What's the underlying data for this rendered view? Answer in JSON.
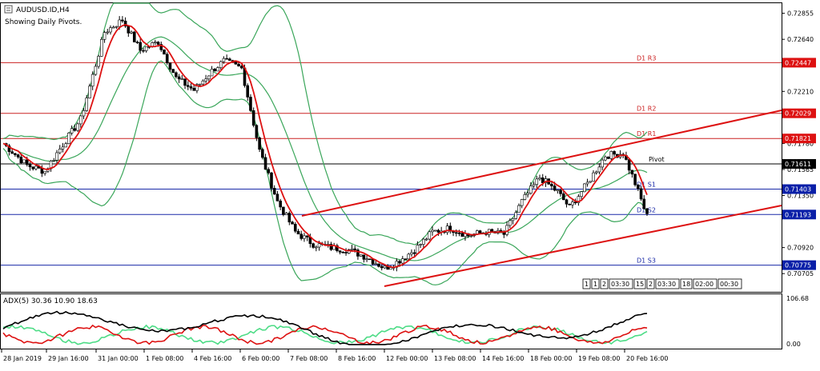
{
  "header": {
    "symbol_title": "AUDUSD.ID,H4",
    "subtitle": "Showing Daily Pivots."
  },
  "price_axis": {
    "ticks": [
      "0.72855",
      "0.72640",
      "0.72210",
      "0.71780",
      "0.71565",
      "0.71350",
      "0.70920",
      "0.70705"
    ],
    "highlight": [
      {
        "text": "0.72447",
        "color": "#dd1111"
      },
      {
        "text": "0.72029",
        "color": "#dd1111"
      },
      {
        "text": "0.71821",
        "color": "#dd1111"
      },
      {
        "text": "0.71611",
        "color": "#000000"
      },
      {
        "text": "0.71403",
        "color": "#0a1fa8"
      },
      {
        "text": "0.71193",
        "color": "#0a1fa8"
      },
      {
        "text": "0.70775",
        "color": "#0a1fa8"
      }
    ]
  },
  "pivots": [
    {
      "name": "D1 R3",
      "price": 0.72447,
      "color": "#cc2222"
    },
    {
      "name": "D1 R2",
      "price": 0.72029,
      "color": "#cc2222"
    },
    {
      "name": "D1 R1",
      "price": 0.71821,
      "color": "#cc2222"
    },
    {
      "name": "Pivot",
      "price": 0.71611,
      "color": "#000000"
    },
    {
      "name": "D1 S1",
      "price": 0.71403,
      "color": "#1a2aa8"
    },
    {
      "name": "D1 S2",
      "price": 0.71193,
      "color": "#1a2aa8"
    },
    {
      "name": "D1 S3",
      "price": 0.70775,
      "color": "#1a2aa8"
    }
  ],
  "time_axis": [
    "28 Jan 2019",
    "29 Jan 16:00",
    "31 Jan 00:00",
    "1 Feb 08:00",
    "4 Feb 16:00",
    "6 Feb 00:00",
    "7 Feb 08:00",
    "8 Feb 16:00",
    "12 Feb 00:00",
    "13 Feb 08:00",
    "14 Feb 16:00",
    "18 Feb 00:00",
    "19 Feb 08:00",
    "20 Feb 16:00"
  ],
  "countdown_boxes": [
    "1",
    "1",
    "2",
    "03:30",
    "15",
    "2",
    "03:30",
    "18",
    "02:00",
    "00:30"
  ],
  "indicator": {
    "label": "ADX(5) 30.36 10.90 18.63",
    "scale_top": "106.68",
    "scale_bottom": "0.00"
  },
  "colors": {
    "candle_up": "#ffffff",
    "candle_down": "#000000",
    "ma_red": "#dd1111",
    "bollinger": "#3aa65a",
    "channel": "#dd1111",
    "adx_main": "#000000",
    "adx_plus": "#4ddc86",
    "adx_minus": "#dd1111"
  },
  "toolbar_icons": [
    "chart-menu-icon"
  ]
}
